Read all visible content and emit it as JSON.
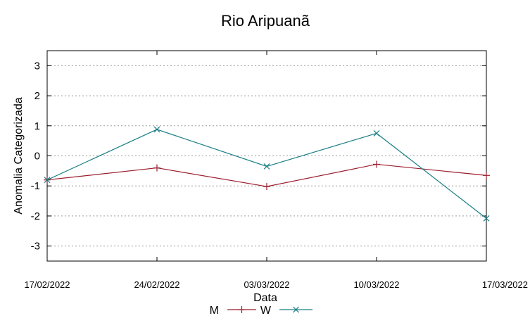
{
  "chart_data": {
    "type": "line",
    "title": "Rio Aripuanã",
    "xlabel": "Data",
    "ylabel": "Anomalia Categorizada",
    "categories": [
      "17/02/2022",
      "24/02/2022",
      "03/03/2022",
      "10/03/2022",
      "17/03/2022"
    ],
    "yticks": [
      "3",
      "2",
      "1",
      "0",
      "-1",
      "-2",
      "-3"
    ],
    "ylim": [
      -3.5,
      3.5
    ],
    "grid": true,
    "legend_position": "bottom-center",
    "series": [
      {
        "name": "M",
        "color": "#9b1c2c",
        "marker": "plus",
        "values": [
          -0.8,
          -0.4,
          -1.02,
          -0.28,
          -0.65
        ]
      },
      {
        "name": "W",
        "color": "#1a7f86",
        "marker": "cross",
        "values": [
          -0.8,
          0.88,
          -0.35,
          0.75,
          -2.08
        ]
      }
    ]
  }
}
